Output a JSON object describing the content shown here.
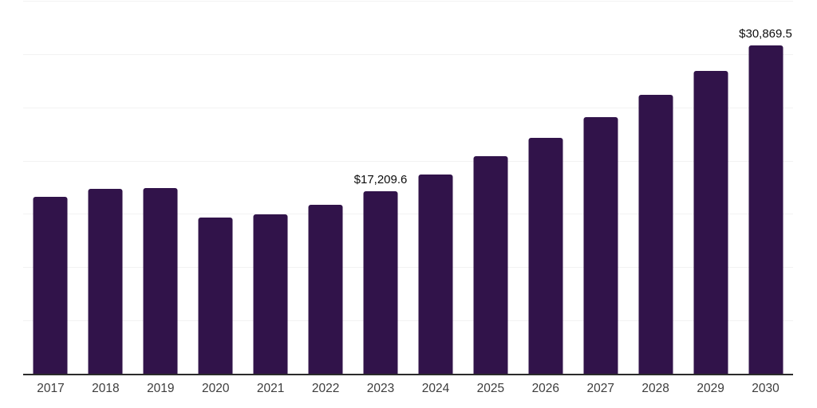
{
  "chart_data": {
    "type": "bar",
    "categories": [
      "2017",
      "2018",
      "2019",
      "2020",
      "2021",
      "2022",
      "2023",
      "2024",
      "2025",
      "2026",
      "2027",
      "2028",
      "2029",
      "2030"
    ],
    "values": [
      16650,
      17450,
      17520,
      14700,
      15000,
      15900,
      17209.6,
      18740,
      20530,
      22250,
      24190,
      26280,
      28520,
      30869.5
    ],
    "data_labels": {
      "2023": "$17,209.6",
      "2030": "$30,869.5"
    },
    "xlabel": "",
    "ylabel": "",
    "ylim": [
      0,
      35000
    ],
    "grid_step": 5000,
    "grid": "horizontal",
    "legend_position": "none",
    "y_tick_labels_visible": false,
    "colors": {
      "bar": "#31134a",
      "gridline": "#f2f2f2",
      "axis_line": "#2b2b2b",
      "data_label_text": "#0d0d0d",
      "tick_label_text": "#3d3d3d",
      "background": "#ffffff"
    }
  }
}
